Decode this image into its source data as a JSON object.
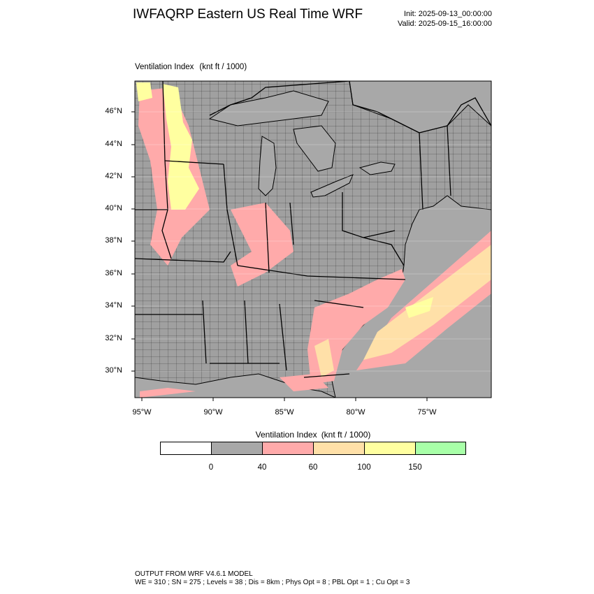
{
  "header": {
    "title": "IWFAQRP Eastern US Real Time WRF",
    "init": "Init: 2025-09-13_00:00:00",
    "valid": "Valid: 2025-09-15_16:00:00"
  },
  "map": {
    "field_label": "Ventilation Index",
    "units": "(knt ft / 1000)",
    "lat_labels": [
      "46°N",
      "44°N",
      "42°N",
      "40°N",
      "38°N",
      "36°N",
      "34°N",
      "32°N",
      "30°N"
    ],
    "lon_labels": [
      "95°W",
      "90°W",
      "85°W",
      "80°W",
      "75°W"
    ],
    "colors": {
      "ocean": "#a8a8a8",
      "land_low": "#a0a0a0",
      "vi_40_60": "#ffaaaa",
      "vi_60_100": "#ffe0a8",
      "vi_100_150": "#ffffa0",
      "vi_150_plus": "#a8ffa8",
      "border": "#000000"
    }
  },
  "legend": {
    "title": "Ventilation Index",
    "units": "(knt ft / 1000)",
    "tick_labels": [
      "0",
      "40",
      "60",
      "100",
      "150"
    ],
    "bin_colors": [
      "#ffffff",
      "#a8a8a8",
      "#ffaaaa",
      "#ffe0a8",
      "#ffffa0",
      "#a8ffa8"
    ]
  },
  "footer": {
    "line1": "OUTPUT FROM WRF V4.6.1 MODEL",
    "line2": "WE = 310 ; SN = 275 ; Levels = 38 ; Dis = 8km ; Phys Opt = 8 ; PBL Opt = 1 ; Cu Opt = 3"
  }
}
